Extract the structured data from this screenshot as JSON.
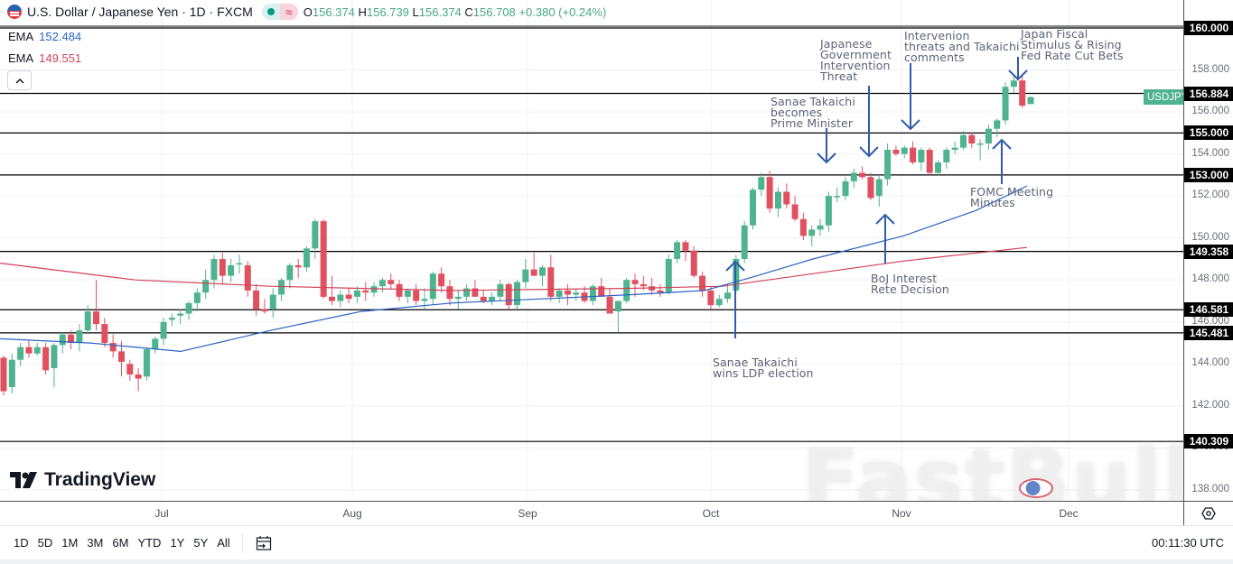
{
  "header": {
    "symbol_title": "U.S. Dollar / Japanese Yen · 1D · FXCM",
    "open_label": "O",
    "open": "156.374",
    "high_label": "H",
    "high": "156.739",
    "low_label": "L",
    "low": "156.374",
    "close_label": "C",
    "close": "156.708",
    "change": "+0.380 (+0.24%)",
    "icons": [
      "us-flag-icon",
      "market-open-dot-icon",
      "wave-icon"
    ]
  },
  "indicators": [
    {
      "name": "EMA",
      "value": "152.484",
      "color": "#2962c4"
    },
    {
      "name": "EMA",
      "value": "149.551",
      "color": "#d1425a"
    }
  ],
  "collapse_button": "^",
  "logo": {
    "text": "TradingView"
  },
  "watermark": "FastBull",
  "symbol_badge": "USDJPY",
  "price_axis": {
    "ticks": [
      "160.000",
      "158.000",
      "156.000",
      "154.000",
      "152.000",
      "150.000",
      "148.000",
      "146.000",
      "144.000",
      "142.000",
      "140.000",
      "138.000"
    ],
    "labels": [
      "160.000",
      "156.884",
      "155.000",
      "153.000",
      "149.358",
      "146.581",
      "145.481",
      "140.309"
    ]
  },
  "time_axis": {
    "ticks": [
      "Jul",
      "Aug",
      "Sep",
      "Oct",
      "Nov",
      "Dec"
    ]
  },
  "bottom_bar": {
    "ranges": [
      "1D",
      "5D",
      "1M",
      "3M",
      "6M",
      "YTD",
      "1Y",
      "5Y",
      "All"
    ],
    "clock": "00:11:30 UTC",
    "goto_date_icon": "calendar-goto-icon",
    "settings_icon": "gear-icon"
  },
  "annotations": [
    {
      "text": "Sanae Takaichi\nwins LDP election",
      "arrow": "up"
    },
    {
      "text": "BoJ Interest\nRete Decision",
      "arrow": "up"
    },
    {
      "text": "Sanae Takaichi\nbecomes\nPrime Minister",
      "arrow": "down"
    },
    {
      "text": "Japanese\nGovernment\nIntervention\nThreat",
      "arrow": "down"
    },
    {
      "text": "Intervenion\nthreats and Takaichi\ncomments",
      "arrow": "down"
    },
    {
      "text": "Japan Fiscal\nStimulus & Rising\nFed Rate Cut Bets",
      "arrow": "down"
    },
    {
      "text": "FOMC Meeting\nMinutes",
      "arrow": "up"
    }
  ],
  "colors": {
    "up": "#4fb38f",
    "down": "#e0505f",
    "ema_fast": "#2962c4",
    "ema_slow": "#d1425a",
    "level_line": "#000000",
    "arrow": "#2f5ca8"
  },
  "chart_data": {
    "type": "candlestick",
    "title": "U.S. Dollar / Japanese Yen · 1D · FXCM",
    "ylim": [
      137,
      161
    ],
    "x_ticks": [
      "Jul",
      "Aug",
      "Sep",
      "Oct",
      "Nov",
      "Dec"
    ],
    "horizontal_levels": [
      160.0,
      156.884,
      155.0,
      153.0,
      149.358,
      146.581,
      145.481,
      140.309
    ],
    "ema_fast_last": 152.484,
    "ema_slow_last": 149.551,
    "candles_ohlc": [
      [
        144.3,
        144.4,
        142.5,
        142.7
      ],
      [
        142.9,
        144.5,
        142.6,
        144.2
      ],
      [
        144.2,
        145.0,
        143.9,
        144.8
      ],
      [
        144.8,
        145.1,
        144.3,
        144.5
      ],
      [
        144.5,
        145.0,
        144.4,
        144.8
      ],
      [
        144.8,
        145.0,
        143.5,
        143.7
      ],
      [
        143.8,
        145.0,
        142.9,
        144.9
      ],
      [
        144.9,
        145.5,
        144.5,
        145.4
      ],
      [
        145.4,
        145.6,
        144.7,
        145.0
      ],
      [
        145.0,
        145.9,
        144.6,
        145.6
      ],
      [
        145.6,
        146.8,
        145.4,
        146.5
      ],
      [
        146.5,
        148.0,
        145.6,
        145.9
      ],
      [
        145.9,
        146.2,
        144.8,
        145.0
      ],
      [
        145.0,
        145.4,
        144.3,
        144.6
      ],
      [
        144.6,
        145.1,
        143.4,
        144.1
      ],
      [
        144.0,
        144.2,
        143.2,
        143.5
      ],
      [
        143.5,
        143.8,
        142.7,
        143.3
      ],
      [
        143.4,
        144.8,
        143.2,
        144.7
      ],
      [
        144.7,
        145.3,
        144.5,
        145.2
      ],
      [
        145.2,
        146.2,
        144.9,
        146.0
      ],
      [
        146.1,
        146.4,
        145.8,
        146.2
      ],
      [
        146.3,
        146.6,
        145.9,
        146.4
      ],
      [
        146.4,
        147.0,
        146.1,
        146.9
      ],
      [
        146.9,
        147.6,
        146.5,
        147.4
      ],
      [
        147.4,
        148.5,
        147.1,
        148.0
      ],
      [
        148.0,
        149.2,
        147.6,
        149.0
      ],
      [
        149.0,
        149.3,
        147.8,
        148.2
      ],
      [
        148.2,
        149.0,
        147.9,
        148.7
      ],
      [
        148.8,
        149.2,
        148.3,
        148.8
      ],
      [
        148.7,
        148.9,
        147.2,
        147.5
      ],
      [
        147.5,
        147.8,
        146.3,
        146.6
      ],
      [
        146.6,
        147.1,
        146.4,
        146.5
      ],
      [
        146.6,
        147.6,
        146.2,
        147.3
      ],
      [
        147.3,
        148.1,
        147.0,
        148.0
      ],
      [
        148.0,
        148.8,
        147.6,
        148.7
      ],
      [
        148.7,
        149.0,
        148.1,
        148.6
      ],
      [
        148.6,
        149.6,
        148.4,
        149.5
      ],
      [
        149.5,
        150.9,
        149.0,
        150.8
      ],
      [
        150.8,
        150.9,
        147.1,
        147.2
      ],
      [
        147.2,
        148.2,
        146.8,
        147.0
      ],
      [
        147.0,
        147.5,
        146.7,
        147.3
      ],
      [
        147.3,
        147.6,
        146.9,
        147.1
      ],
      [
        147.2,
        147.7,
        146.9,
        147.5
      ],
      [
        147.5,
        147.9,
        147.0,
        147.4
      ],
      [
        147.4,
        147.9,
        147.2,
        147.7
      ],
      [
        147.7,
        148.1,
        147.4,
        148.0
      ],
      [
        148.0,
        148.3,
        147.6,
        147.8
      ],
      [
        147.8,
        148.0,
        147.0,
        147.2
      ],
      [
        147.2,
        147.6,
        146.9,
        147.5
      ],
      [
        147.5,
        147.8,
        146.8,
        147.0
      ],
      [
        147.0,
        147.6,
        146.6,
        147.1
      ],
      [
        147.1,
        148.4,
        146.8,
        148.3
      ],
      [
        148.3,
        148.6,
        147.4,
        147.7
      ],
      [
        147.7,
        148.0,
        146.8,
        147.1
      ],
      [
        147.1,
        147.5,
        146.6,
        147.2
      ],
      [
        147.2,
        147.8,
        147.0,
        147.6
      ],
      [
        147.6,
        148.0,
        147.3,
        147.2
      ],
      [
        147.2,
        147.5,
        146.9,
        147.0
      ],
      [
        147.0,
        147.4,
        146.8,
        147.2
      ],
      [
        147.2,
        148.0,
        147.0,
        147.8
      ],
      [
        147.8,
        147.9,
        146.6,
        146.8
      ],
      [
        146.8,
        148.0,
        146.6,
        147.9
      ],
      [
        147.9,
        149.0,
        147.6,
        148.5
      ],
      [
        148.5,
        149.3,
        148.2,
        148.2
      ],
      [
        148.2,
        148.7,
        147.7,
        148.6
      ],
      [
        148.6,
        149.2,
        147.0,
        147.2
      ],
      [
        147.2,
        147.6,
        146.9,
        147.5
      ],
      [
        147.5,
        147.8,
        146.8,
        147.3
      ],
      [
        147.3,
        147.6,
        147.0,
        147.4
      ],
      [
        147.4,
        147.7,
        146.9,
        147.0
      ],
      [
        147.0,
        147.8,
        146.8,
        147.7
      ],
      [
        147.7,
        148.1,
        147.3,
        147.2
      ],
      [
        147.2,
        147.6,
        146.6,
        146.4
      ],
      [
        146.5,
        147.0,
        145.5,
        147.0
      ],
      [
        147.0,
        148.1,
        146.9,
        148.0
      ],
      [
        148.0,
        148.3,
        147.2,
        147.8
      ],
      [
        147.8,
        148.2,
        147.5,
        147.7
      ],
      [
        147.7,
        148.1,
        147.3,
        147.5
      ],
      [
        147.5,
        147.8,
        147.2,
        147.4
      ],
      [
        147.4,
        149.2,
        147.3,
        149.0
      ],
      [
        149.0,
        149.9,
        148.8,
        149.8
      ],
      [
        149.8,
        149.9,
        148.9,
        149.4
      ],
      [
        149.4,
        149.6,
        148.1,
        148.2
      ],
      [
        148.2,
        148.4,
        147.2,
        147.5
      ],
      [
        147.5,
        147.7,
        146.6,
        146.8
      ],
      [
        146.8,
        147.3,
        146.7,
        147.1
      ],
      [
        147.1,
        147.8,
        146.9,
        147.4
      ],
      [
        147.5,
        149.2,
        147.4,
        149.0
      ],
      [
        149.0,
        150.8,
        148.8,
        150.6
      ],
      [
        150.6,
        152.4,
        150.4,
        152.3
      ],
      [
        152.3,
        153.1,
        152.0,
        152.9
      ],
      [
        152.9,
        153.2,
        151.2,
        151.4
      ],
      [
        151.4,
        152.4,
        151.0,
        152.2
      ],
      [
        152.2,
        152.6,
        151.4,
        151.6
      ],
      [
        151.6,
        152.0,
        150.8,
        150.9
      ],
      [
        150.9,
        151.2,
        149.9,
        150.1
      ],
      [
        150.1,
        150.6,
        149.6,
        150.4
      ],
      [
        150.4,
        150.9,
        150.1,
        150.6
      ],
      [
        150.6,
        152.2,
        150.3,
        152.0
      ],
      [
        152.0,
        152.4,
        151.7,
        152.0
      ],
      [
        152.0,
        152.9,
        151.8,
        152.7
      ],
      [
        152.7,
        153.3,
        152.4,
        153.1
      ],
      [
        153.1,
        153.4,
        152.8,
        152.9
      ],
      [
        152.9,
        153.1,
        151.8,
        151.9
      ],
      [
        152.0,
        153.0,
        151.5,
        152.8
      ],
      [
        152.8,
        154.5,
        152.5,
        154.2
      ],
      [
        154.2,
        154.4,
        153.9,
        154.0
      ],
      [
        154.0,
        154.4,
        153.8,
        154.3
      ],
      [
        154.3,
        154.6,
        153.5,
        153.6
      ],
      [
        153.6,
        154.3,
        153.2,
        154.2
      ],
      [
        154.2,
        154.3,
        153.0,
        153.1
      ],
      [
        153.1,
        153.7,
        153.0,
        153.6
      ],
      [
        153.6,
        154.3,
        153.3,
        154.2
      ],
      [
        154.2,
        154.6,
        154.0,
        154.3
      ],
      [
        154.3,
        155.1,
        154.2,
        154.9
      ],
      [
        154.9,
        155.0,
        154.3,
        154.5
      ],
      [
        154.5,
        154.7,
        153.7,
        154.5
      ],
      [
        154.5,
        155.4,
        154.2,
        155.2
      ],
      [
        155.2,
        155.7,
        154.8,
        155.6
      ],
      [
        155.6,
        157.4,
        155.4,
        157.2
      ],
      [
        157.2,
        157.7,
        156.9,
        157.5
      ],
      [
        157.5,
        157.7,
        156.2,
        156.3
      ],
      [
        156.374,
        156.739,
        156.374,
        156.708
      ]
    ]
  }
}
